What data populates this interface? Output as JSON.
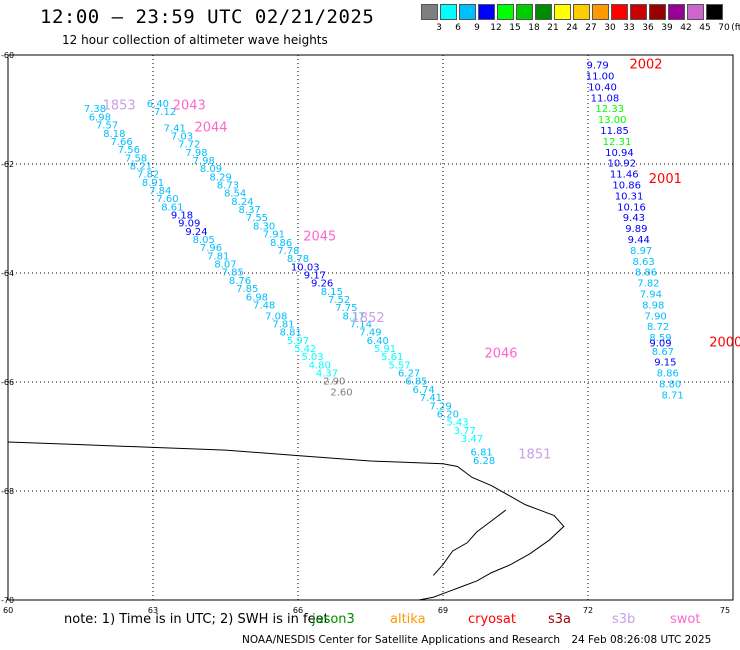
{
  "header": {
    "title": "12:00 – 23:59 UTC 02/21/2025",
    "subtitle": "12 hour collection of altimeter wave heights"
  },
  "legend": {
    "unit": "(ft)",
    "stops": [
      {
        "value": "3",
        "color": "#7f7f7f"
      },
      {
        "value": "6",
        "color": "#00ffff"
      },
      {
        "value": "9",
        "color": "#00bfff"
      },
      {
        "value": "12",
        "color": "#0000ff"
      },
      {
        "value": "15",
        "color": "#00ff00"
      },
      {
        "value": "18",
        "color": "#00cc00"
      },
      {
        "value": "21",
        "color": "#008c00"
      },
      {
        "value": "24",
        "color": "#ffff00"
      },
      {
        "value": "27",
        "color": "#ffcc00"
      },
      {
        "value": "30",
        "color": "#ff9900"
      },
      {
        "value": "33",
        "color": "#ff0000"
      },
      {
        "value": "36",
        "color": "#cc0000"
      },
      {
        "value": "39",
        "color": "#990000"
      },
      {
        "value": "42",
        "color": "#990099"
      },
      {
        "value": "45",
        "color": "#cc66cc"
      },
      {
        "value": "70",
        "color": "#000000"
      }
    ]
  },
  "axes": {
    "lat_labels": [
      "-60",
      "-62",
      "-64",
      "-66",
      "-68",
      "-70"
    ],
    "lon_labels": [
      "60",
      "63",
      "66",
      "69",
      "72",
      "75"
    ]
  },
  "tracks": [
    {
      "id": "1853",
      "label_color": "#c8a0e6",
      "label": {
        "lon": 62.3,
        "lat": -61.0
      },
      "points": [
        [
          "7.38",
          61.8,
          -61.05,
          "#00bfff"
        ],
        [
          "6.98",
          61.9,
          -61.2,
          "#00bfff"
        ],
        [
          "7.57",
          62.05,
          -61.35,
          "#00bfff"
        ],
        [
          "8.18",
          62.2,
          -61.5,
          "#00bfff"
        ],
        [
          "7.66",
          62.35,
          -61.65,
          "#00bfff"
        ],
        [
          "7.56",
          62.5,
          -61.8,
          "#00bfff"
        ],
        [
          "7.58",
          62.65,
          -61.95,
          "#00bfff"
        ],
        [
          "8.21",
          62.75,
          -62.1,
          "#00bfff"
        ],
        [
          "7.82",
          62.9,
          -62.25,
          "#00bfff"
        ],
        [
          "8.91",
          63.0,
          -62.4,
          "#00bfff"
        ],
        [
          "7.84",
          63.15,
          -62.55,
          "#00bfff"
        ],
        [
          "7.60",
          63.3,
          -62.7,
          "#00bfff"
        ],
        [
          "8.61",
          63.4,
          -62.85,
          "#00bfff"
        ],
        [
          "9.18",
          63.6,
          -63.0,
          "#0000ff"
        ],
        [
          "9.09",
          63.75,
          -63.15,
          "#0000ff"
        ],
        [
          "9.24",
          63.9,
          -63.3,
          "#0000ff"
        ],
        [
          "8.05",
          64.05,
          -63.45,
          "#00bfff"
        ],
        [
          "7.96",
          64.2,
          -63.6,
          "#00bfff"
        ],
        [
          "7.81",
          64.35,
          -63.75,
          "#00bfff"
        ],
        [
          "8.07",
          64.5,
          -63.9,
          "#00bfff"
        ],
        [
          "7.85",
          64.65,
          -64.05,
          "#00bfff"
        ],
        [
          "8.76",
          64.8,
          -64.2,
          "#00bfff"
        ],
        [
          "7.85",
          64.95,
          -64.35,
          "#00bfff"
        ],
        [
          "6.98",
          65.15,
          -64.5,
          "#00bfff"
        ],
        [
          "7.48",
          65.3,
          -64.65,
          "#00bfff"
        ],
        [
          "7.08",
          65.55,
          -64.85,
          "#00bfff"
        ],
        [
          "7.81",
          65.7,
          -65.0,
          "#00bfff"
        ],
        [
          "8.81",
          65.85,
          -65.15,
          "#00bfff"
        ],
        [
          "5.97",
          66.0,
          -65.3,
          "#00ffff"
        ],
        [
          "5.42",
          66.15,
          -65.45,
          "#00ffff"
        ],
        [
          "5.03",
          66.3,
          -65.6,
          "#00ffff"
        ],
        [
          "4.80",
          66.45,
          -65.75,
          "#00ffff"
        ],
        [
          "4.37",
          66.6,
          -65.9,
          "#00ffff"
        ],
        [
          "2.90",
          66.75,
          -66.05,
          "#7f7f7f"
        ],
        [
          "2.60",
          66.9,
          -66.25,
          "#7f7f7f"
        ]
      ]
    },
    {
      "id": "2043",
      "label_color": "#ff66cc",
      "label": {
        "lon": 63.75,
        "lat": -61.0
      },
      "points": [
        [
          "6.40",
          63.1,
          -60.95,
          "#00bfff"
        ],
        [
          "7.12",
          63.25,
          -61.1,
          "#00bfff"
        ]
      ]
    },
    {
      "id": "2044",
      "label_color": "#ff66cc",
      "label": {
        "lon": 64.2,
        "lat": -61.4
      },
      "points": [
        [
          "7.41",
          63.45,
          -61.4,
          "#00bfff"
        ],
        [
          "7.03",
          63.6,
          -61.55,
          "#00bfff"
        ],
        [
          "7.72",
          63.75,
          -61.7,
          "#00bfff"
        ],
        [
          "7.98",
          63.9,
          -61.85,
          "#00bfff"
        ],
        [
          "7.98",
          64.05,
          -62.0,
          "#00bfff"
        ],
        [
          "8.09",
          64.2,
          -62.15,
          "#00bfff"
        ],
        [
          "8.29",
          64.4,
          -62.3,
          "#00bfff"
        ],
        [
          "8.73",
          64.55,
          -62.45,
          "#00bfff"
        ],
        [
          "8.54",
          64.7,
          -62.6,
          "#00bfff"
        ],
        [
          "8.24",
          64.85,
          -62.75,
          "#00bfff"
        ],
        [
          "8.37",
          65.0,
          -62.9,
          "#00bfff"
        ],
        [
          "7.55",
          65.15,
          -63.05,
          "#00bfff"
        ],
        [
          "8.30",
          65.3,
          -63.2,
          "#00bfff"
        ],
        [
          "7.91",
          65.5,
          -63.35,
          "#00bfff"
        ],
        [
          "8.86",
          65.65,
          -63.5,
          "#00bfff"
        ],
        [
          "7.78",
          65.8,
          -63.65,
          "#00bfff"
        ],
        [
          "8.78",
          66.0,
          -63.8,
          "#00bfff"
        ],
        [
          "10.03",
          66.15,
          -63.95,
          "#0000ff"
        ],
        [
          "9.17",
          66.35,
          -64.1,
          "#0000ff"
        ],
        [
          "9.26",
          66.5,
          -64.25,
          "#0000ff"
        ],
        [
          "8.15",
          66.7,
          -64.4,
          "#00bfff"
        ],
        [
          "7.52",
          66.85,
          -64.55,
          "#00bfff"
        ],
        [
          "7.75",
          67.0,
          -64.7,
          "#00bfff"
        ],
        [
          "8.17",
          67.15,
          -64.85,
          "#00bfff"
        ],
        [
          "7.14",
          67.3,
          -65.0,
          "#00bfff"
        ],
        [
          "7.49",
          67.5,
          -65.15,
          "#00bfff"
        ],
        [
          "6.40",
          67.65,
          -65.3,
          "#00bfff"
        ],
        [
          "5.91",
          67.8,
          -65.45,
          "#00ffff"
        ],
        [
          "5.61",
          67.95,
          -65.6,
          "#00ffff"
        ],
        [
          "5.57",
          68.1,
          -65.75,
          "#00ffff"
        ],
        [
          "6.27",
          68.3,
          -65.9,
          "#00bfff"
        ],
        [
          "6.85",
          68.45,
          -66.05,
          "#00bfff"
        ],
        [
          "6.74",
          68.6,
          -66.2,
          "#00bfff"
        ],
        [
          "7.41",
          68.75,
          -66.35,
          "#00bfff"
        ],
        [
          "7.29",
          68.95,
          -66.5,
          "#00bfff"
        ],
        [
          "6.20",
          69.1,
          -66.65,
          "#00bfff"
        ],
        [
          "5.43",
          69.3,
          -66.8,
          "#00ffff"
        ],
        [
          "3.77",
          69.45,
          -66.95,
          "#00ffff"
        ],
        [
          "3.47",
          69.6,
          -67.1,
          "#00ffff"
        ]
      ]
    },
    {
      "id": "2045",
      "label_color": "#ff66cc",
      "label": {
        "lon": 66.45,
        "lat": -63.4
      },
      "points": []
    },
    {
      "id": "1852",
      "label_color": "#c8a0e6",
      "label": {
        "lon": 67.45,
        "lat": -64.9
      },
      "points": []
    },
    {
      "id": "2046",
      "label_color": "#ff66cc",
      "label": {
        "lon": 70.2,
        "lat": -65.55
      },
      "points": []
    },
    {
      "id": "1851",
      "label_color": "#c8a0e6",
      "label": {
        "lon": 70.9,
        "lat": -67.4
      },
      "points": [
        [
          "6.81",
          69.8,
          -67.35,
          "#00bfff"
        ],
        [
          "6.28",
          69.85,
          -67.5,
          "#00bfff"
        ]
      ]
    },
    {
      "id": "2002",
      "label_color": "#ff0000",
      "label": {
        "lon": 73.2,
        "lat": -60.25
      },
      "points": [
        [
          "9.79",
          72.2,
          -60.25,
          "#0000ff"
        ],
        [
          "11.00",
          72.25,
          -60.45,
          "#0000ff"
        ],
        [
          "10.40",
          72.3,
          -60.65,
          "#0000ff"
        ],
        [
          "11.08",
          72.35,
          -60.85,
          "#0000ff"
        ],
        [
          "12.33",
          72.45,
          -61.05,
          "#00ff00"
        ],
        [
          "13.00",
          72.5,
          -61.25,
          "#00ff00"
        ],
        [
          "11.85",
          72.55,
          -61.45,
          "#0000ff"
        ],
        [
          "12.31",
          72.6,
          -61.65,
          "#00ff00"
        ],
        [
          "10.94",
          72.65,
          -61.85,
          "#0000ff"
        ],
        [
          "10.92",
          72.7,
          -62.05,
          "#0000ff"
        ],
        [
          "11.46",
          72.75,
          -62.25,
          "#0000ff"
        ]
      ]
    },
    {
      "id": "2001",
      "label_color": "#ff0000",
      "label": {
        "lon": 73.6,
        "lat": -62.35
      },
      "points": [
        [
          "10.86",
          72.8,
          -62.45,
          "#0000ff"
        ],
        [
          "10.31",
          72.85,
          -62.65,
          "#0000ff"
        ],
        [
          "10.16",
          72.9,
          -62.85,
          "#0000ff"
        ],
        [
          "9.43",
          72.95,
          -63.05,
          "#0000ff"
        ],
        [
          "9.89",
          73.0,
          -63.25,
          "#0000ff"
        ],
        [
          "9.44",
          73.05,
          -63.45,
          "#0000ff"
        ],
        [
          "8.97",
          73.1,
          -63.65,
          "#00bfff"
        ],
        [
          "8.63",
          73.15,
          -63.85,
          "#00bfff"
        ],
        [
          "8.86",
          73.2,
          -64.05,
          "#00bfff"
        ],
        [
          "7.82",
          73.25,
          -64.25,
          "#00bfff"
        ],
        [
          "7.94",
          73.3,
          -64.45,
          "#00bfff"
        ],
        [
          "8.98",
          73.35,
          -64.65,
          "#00bfff"
        ],
        [
          "7.90",
          73.4,
          -64.85,
          "#00bfff"
        ],
        [
          "8.72",
          73.45,
          -65.05,
          "#00bfff"
        ],
        [
          "8.59",
          73.5,
          -65.25,
          "#00bfff"
        ],
        [
          "9.09",
          73.5,
          -65.35,
          "#0000ff"
        ]
      ]
    },
    {
      "id": "2000",
      "label_color": "#ff0000",
      "label": {
        "lon": 74.85,
        "lat": -65.35
      },
      "points": [
        [
          "8.67",
          73.55,
          -65.5,
          "#00bfff"
        ],
        [
          "9.15",
          73.6,
          -65.7,
          "#0000ff"
        ],
        [
          "8.86",
          73.65,
          -65.9,
          "#00bfff"
        ],
        [
          "8.80",
          73.7,
          -66.1,
          "#00bfff"
        ],
        [
          "8.71",
          73.75,
          -66.3,
          "#00bfff"
        ]
      ]
    }
  ],
  "coastline": [
    [
      60.0,
      -67.1
    ],
    [
      61.5,
      -67.15
    ],
    [
      63.0,
      -67.2
    ],
    [
      64.5,
      -67.25
    ],
    [
      66.0,
      -67.35
    ],
    [
      67.5,
      -67.45
    ],
    [
      69.0,
      -67.5
    ],
    [
      69.3,
      -67.55
    ],
    [
      69.6,
      -67.75
    ],
    [
      70.0,
      -67.9
    ],
    [
      70.4,
      -68.1
    ],
    [
      70.7,
      -68.25
    ],
    [
      71.0,
      -68.35
    ],
    [
      71.3,
      -68.45
    ],
    [
      71.5,
      -68.65
    ],
    [
      71.2,
      -68.9
    ],
    [
      70.8,
      -69.15
    ],
    [
      70.4,
      -69.35
    ],
    [
      70.0,
      -69.5
    ],
    [
      69.7,
      -69.65
    ],
    [
      69.4,
      -69.75
    ],
    [
      69.1,
      -69.85
    ],
    [
      68.8,
      -69.95
    ],
    [
      68.5,
      -70.0
    ]
  ],
  "coastline2": [
    [
      70.3,
      -68.35
    ],
    [
      70.0,
      -68.55
    ],
    [
      69.7,
      -68.75
    ],
    [
      69.5,
      -68.95
    ],
    [
      69.2,
      -69.1
    ],
    [
      69.0,
      -69.35
    ],
    [
      68.8,
      -69.55
    ]
  ],
  "footer": {
    "note": "note: 1) Time is in UTC; 2) SWH is in feet",
    "satellites": [
      {
        "name": "jason3",
        "color": "#008c00"
      },
      {
        "name": "altika",
        "color": "#ff9900"
      },
      {
        "name": "cryosat",
        "color": "#ff0000"
      },
      {
        "name": "s3a",
        "color": "#990000"
      },
      {
        "name": "s3b",
        "color": "#c8a0e6"
      },
      {
        "name": "swot",
        "color": "#ff66cc"
      }
    ],
    "credit": "NOAA/NESDIS Center for Satellite Applications and Research",
    "generated": "24 Feb 08:26:08 UTC 2025"
  }
}
